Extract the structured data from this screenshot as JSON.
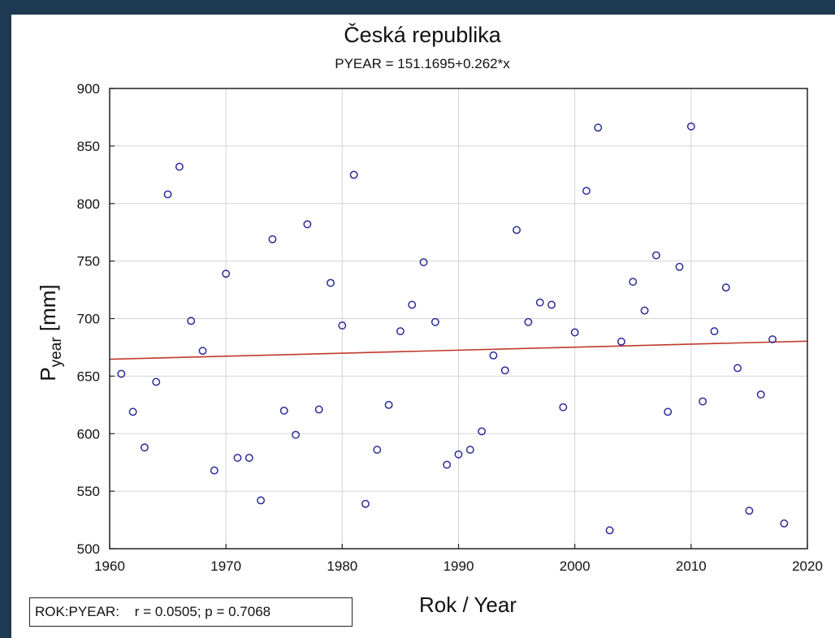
{
  "chart_data": {
    "type": "scatter",
    "title": "Česká republika",
    "subtitle": "PYEAR = 151.1695+0.262*x",
    "xlabel": "Rok / Year",
    "ylabel_main": "P",
    "ylabel_sub": "year",
    "ylabel_unit": " [mm]",
    "xlim": [
      1960,
      2020
    ],
    "ylim": [
      500,
      900
    ],
    "xticks": [
      1960,
      1970,
      1980,
      1990,
      2000,
      2010,
      2020
    ],
    "yticks": [
      500,
      550,
      600,
      650,
      700,
      750,
      800,
      850,
      900
    ],
    "grid": true,
    "marker_color": "#2b2b9a",
    "line_color": "#c0392b",
    "regression": {
      "x": [
        1960,
        2020
      ],
      "y": [
        664.7,
        680.4
      ]
    },
    "points": [
      {
        "x": 1961,
        "y": 652
      },
      {
        "x": 1962,
        "y": 619
      },
      {
        "x": 1963,
        "y": 588
      },
      {
        "x": 1964,
        "y": 645
      },
      {
        "x": 1965,
        "y": 808
      },
      {
        "x": 1966,
        "y": 832
      },
      {
        "x": 1967,
        "y": 698
      },
      {
        "x": 1968,
        "y": 672
      },
      {
        "x": 1969,
        "y": 568
      },
      {
        "x": 1970,
        "y": 739
      },
      {
        "x": 1971,
        "y": 579
      },
      {
        "x": 1972,
        "y": 579
      },
      {
        "x": 1973,
        "y": 542
      },
      {
        "x": 1974,
        "y": 769
      },
      {
        "x": 1975,
        "y": 620
      },
      {
        "x": 1976,
        "y": 599
      },
      {
        "x": 1977,
        "y": 782
      },
      {
        "x": 1978,
        "y": 621
      },
      {
        "x": 1979,
        "y": 731
      },
      {
        "x": 1980,
        "y": 694
      },
      {
        "x": 1981,
        "y": 825
      },
      {
        "x": 1982,
        "y": 539
      },
      {
        "x": 1983,
        "y": 586
      },
      {
        "x": 1984,
        "y": 625
      },
      {
        "x": 1985,
        "y": 689
      },
      {
        "x": 1986,
        "y": 712
      },
      {
        "x": 1987,
        "y": 749
      },
      {
        "x": 1988,
        "y": 697
      },
      {
        "x": 1989,
        "y": 573
      },
      {
        "x": 1990,
        "y": 582
      },
      {
        "x": 1991,
        "y": 586
      },
      {
        "x": 1992,
        "y": 602
      },
      {
        "x": 1993,
        "y": 668
      },
      {
        "x": 1994,
        "y": 655
      },
      {
        "x": 1995,
        "y": 777
      },
      {
        "x": 1996,
        "y": 697
      },
      {
        "x": 1997,
        "y": 714
      },
      {
        "x": 1998,
        "y": 712
      },
      {
        "x": 1999,
        "y": 623
      },
      {
        "x": 2000,
        "y": 688
      },
      {
        "x": 2001,
        "y": 811
      },
      {
        "x": 2002,
        "y": 866
      },
      {
        "x": 2003,
        "y": 516
      },
      {
        "x": 2004,
        "y": 680
      },
      {
        "x": 2005,
        "y": 732
      },
      {
        "x": 2006,
        "y": 707
      },
      {
        "x": 2007,
        "y": 755
      },
      {
        "x": 2008,
        "y": 619
      },
      {
        "x": 2009,
        "y": 745
      },
      {
        "x": 2010,
        "y": 867
      },
      {
        "x": 2011,
        "y": 628
      },
      {
        "x": 2012,
        "y": 689
      },
      {
        "x": 2013,
        "y": 727
      },
      {
        "x": 2014,
        "y": 657
      },
      {
        "x": 2015,
        "y": 533
      },
      {
        "x": 2016,
        "y": 634
      },
      {
        "x": 2017,
        "y": 682
      },
      {
        "x": 2018,
        "y": 522
      }
    ]
  },
  "stats_label": "ROK:PYEAR:    r = 0.0505; p = 0.7068"
}
